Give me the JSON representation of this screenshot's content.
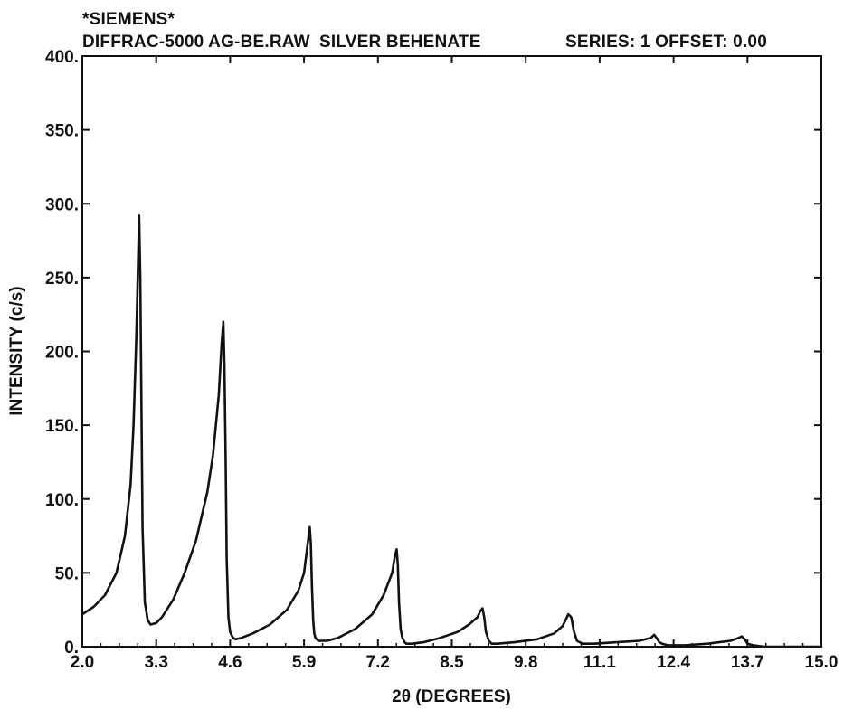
{
  "header": {
    "brand": "*SIEMENS*",
    "file": "DIFFRAC-5000 AG-BE.RAW",
    "sample": "SILVER BEHENATE",
    "series": "SERIES: 1 OFFSET: 0.00"
  },
  "chart_data": {
    "type": "line",
    "title": "",
    "xlabel": "2θ (DEGREES)",
    "ylabel": "INTENSITY (c/s)",
    "xlim": [
      2.0,
      15.0
    ],
    "ylim": [
      0,
      400
    ],
    "x_ticks": [
      2.0,
      3.3,
      4.6,
      5.9,
      7.2,
      8.5,
      9.8,
      11.1,
      12.4,
      13.7,
      15.0
    ],
    "x_tick_labels": [
      "2.0",
      "3.3",
      "4.6",
      "5.9",
      "7.2",
      "8.5",
      "9.8",
      "11.1",
      "12.4",
      "13.7",
      "15.0"
    ],
    "y_ticks": [
      0,
      50,
      100,
      150,
      200,
      250,
      300,
      350,
      400
    ],
    "y_tick_labels": [
      "0.",
      "50.",
      "100.",
      "150.",
      "200.",
      "250.",
      "300.",
      "350.",
      "400."
    ],
    "grid": false,
    "line_color": "#111111",
    "series": [
      {
        "x": [
          2.0,
          2.2,
          2.4,
          2.6,
          2.75,
          2.85,
          2.9,
          2.95,
          2.98,
          3.0,
          3.02,
          3.04,
          3.06,
          3.1,
          3.15,
          3.2,
          3.3,
          3.4,
          3.6,
          3.8,
          4.0,
          4.2,
          4.3,
          4.4,
          4.45,
          4.48,
          4.5,
          4.52,
          4.54,
          4.57,
          4.6,
          4.65,
          4.7,
          4.8,
          5.0,
          5.3,
          5.6,
          5.8,
          5.9,
          5.95,
          6.0,
          6.02,
          6.04,
          6.06,
          6.08,
          6.1,
          6.15,
          6.2,
          6.3,
          6.5,
          6.8,
          7.1,
          7.3,
          7.45,
          7.5,
          7.53,
          7.55,
          7.57,
          7.6,
          7.63,
          7.67,
          7.7,
          7.8,
          8.0,
          8.3,
          8.6,
          8.8,
          8.95,
          9.0,
          9.04,
          9.07,
          9.1,
          9.15,
          9.2,
          9.3,
          9.6,
          10.0,
          10.3,
          10.45,
          10.5,
          10.55,
          10.6,
          10.65,
          10.7,
          10.8,
          11.0,
          11.4,
          11.8,
          12.0,
          12.06,
          12.1,
          12.15,
          12.2,
          12.3,
          12.6,
          13.0,
          13.4,
          13.55,
          13.6,
          13.65,
          13.7,
          13.8,
          14.0,
          14.5,
          15.0
        ],
        "y": [
          22,
          27,
          35,
          50,
          75,
          110,
          150,
          210,
          260,
          292,
          250,
          160,
          80,
          30,
          18,
          15,
          16,
          20,
          32,
          50,
          72,
          105,
          130,
          170,
          205,
          220,
          190,
          130,
          60,
          20,
          10,
          6,
          5,
          6,
          9,
          15,
          25,
          38,
          50,
          65,
          81,
          70,
          40,
          18,
          9,
          6,
          4,
          4,
          4,
          6,
          12,
          22,
          35,
          50,
          62,
          66,
          55,
          30,
          12,
          6,
          3,
          2,
          2,
          3,
          6,
          10,
          15,
          20,
          24,
          26,
          20,
          10,
          4,
          2,
          2,
          3,
          5,
          9,
          14,
          18,
          22,
          20,
          10,
          4,
          2,
          2,
          3,
          4,
          6,
          8,
          6,
          3,
          2,
          1,
          1,
          2,
          4,
          6,
          7,
          5,
          2,
          1,
          0,
          0,
          0
        ]
      }
    ]
  }
}
